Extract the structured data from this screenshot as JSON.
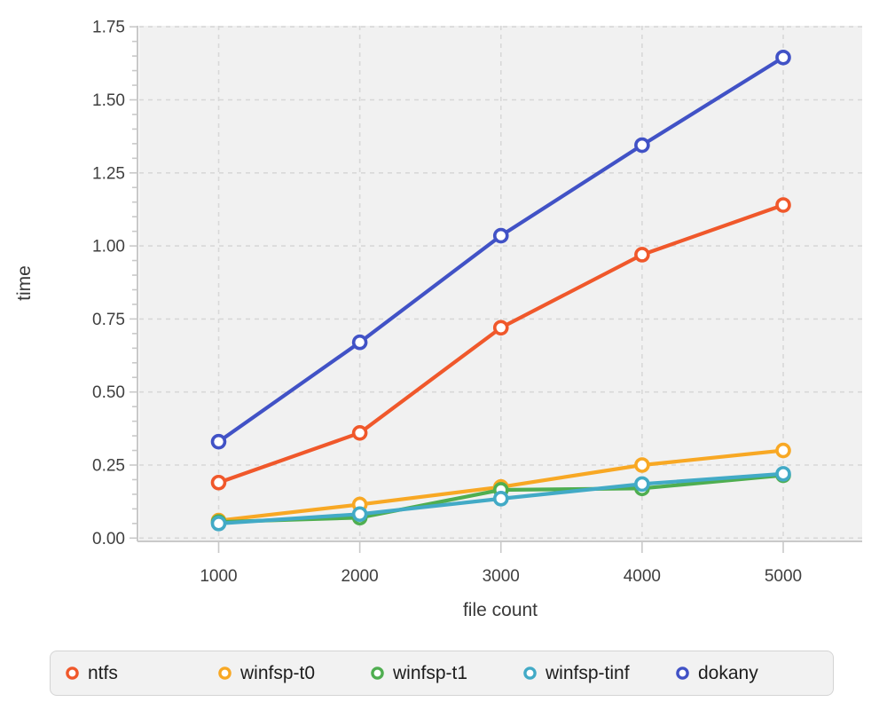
{
  "chart_data": {
    "type": "line",
    "title": "",
    "xlabel": "file count",
    "ylabel": "time",
    "x": [
      1000,
      2000,
      3000,
      4000,
      5000
    ],
    "xtick_labels": [
      "1000",
      "2000",
      "3000",
      "4000",
      "5000"
    ],
    "yticks": [
      0,
      0.25,
      0.5,
      0.75,
      1.0,
      1.25,
      1.5,
      1.75
    ],
    "ytick_labels": [
      "0.00",
      "0.25",
      "0.50",
      "0.75",
      "1.00",
      "1.25",
      "1.50",
      "1.75"
    ],
    "ylim": [
      0,
      1.75
    ],
    "minor_tick_step": 0.05,
    "grid": "dashed",
    "marker": "open-circle",
    "legend_position": "bottom",
    "series": [
      {
        "name": "ntfs",
        "color": "#f0582b",
        "values": [
          0.19,
          0.36,
          0.72,
          0.97,
          1.14
        ]
      },
      {
        "name": "winfsp-t0",
        "color": "#f8a824",
        "values": [
          0.06,
          0.115,
          0.175,
          0.25,
          0.3
        ]
      },
      {
        "name": "winfsp-t1",
        "color": "#4fae50",
        "values": [
          0.055,
          0.07,
          0.165,
          0.17,
          0.215
        ]
      },
      {
        "name": "winfsp-tinf",
        "color": "#42aac6",
        "values": [
          0.05,
          0.082,
          0.135,
          0.185,
          0.22
        ]
      },
      {
        "name": "dokany",
        "color": "#4152c6",
        "values": [
          0.33,
          0.67,
          1.035,
          1.345,
          1.645
        ]
      }
    ],
    "colors": {
      "plot_background": "#f1f1f1",
      "grid_line": "#d8d8d8",
      "axis_line": "#c9c9c9",
      "tick_text": "#3f3f3f",
      "legend_background": "#f2f2f2",
      "legend_border": "#d4d4d4",
      "legend_text": "#1d1d1d",
      "marker_fill": "#ffffff"
    }
  }
}
